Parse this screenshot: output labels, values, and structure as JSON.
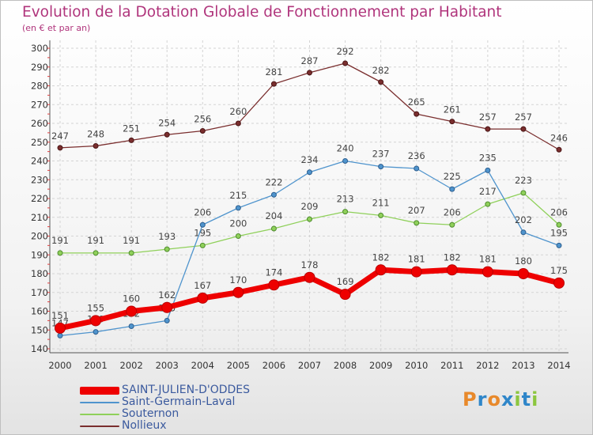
{
  "title": "Evolution de la Dotation Globale de Fonctionnement par Habitant",
  "subtitle": "(en € et par an)",
  "logo": "Proxiti",
  "chart_data": {
    "type": "line",
    "title": "Evolution de la Dotation Globale de Fonctionnement par Habitant",
    "subtitle": "(en € et par an)",
    "x": [
      "2000",
      "2001",
      "2002",
      "2003",
      "2004",
      "2005",
      "2006",
      "2007",
      "2008",
      "2009",
      "2010",
      "2011",
      "2012",
      "2013",
      "2014"
    ],
    "ylim": [
      140,
      300
    ],
    "yticks": [
      "140",
      "150",
      "160",
      "170",
      "180",
      "190",
      "200",
      "210",
      "220",
      "230",
      "240",
      "250",
      "260",
      "270",
      "280",
      "290",
      "300"
    ],
    "grid": true,
    "legend": "bottom-left",
    "series": [
      {
        "name": "SAINT-JULIEN-D'ODDES",
        "color": "#ee0000",
        "values": [
          151,
          155,
          160,
          162,
          167,
          170,
          174,
          178,
          169,
          182,
          181,
          182,
          181,
          180,
          175
        ]
      },
      {
        "name": "Saint-Germain-Laval",
        "color": "#4f94cd",
        "values": [
          147,
          149,
          152,
          155,
          206,
          215,
          222,
          234,
          240,
          237,
          236,
          225,
          235,
          202,
          195
        ]
      },
      {
        "name": "Souternon",
        "color": "#8fd05a",
        "values": [
          191,
          191,
          191,
          193,
          195,
          200,
          204,
          209,
          213,
          211,
          207,
          206,
          217,
          223,
          206
        ]
      },
      {
        "name": "Nollieux",
        "color": "#7a2e2e",
        "values": [
          247,
          248,
          251,
          254,
          256,
          260,
          281,
          287,
          292,
          282,
          265,
          261,
          257,
          257,
          246
        ]
      }
    ]
  }
}
